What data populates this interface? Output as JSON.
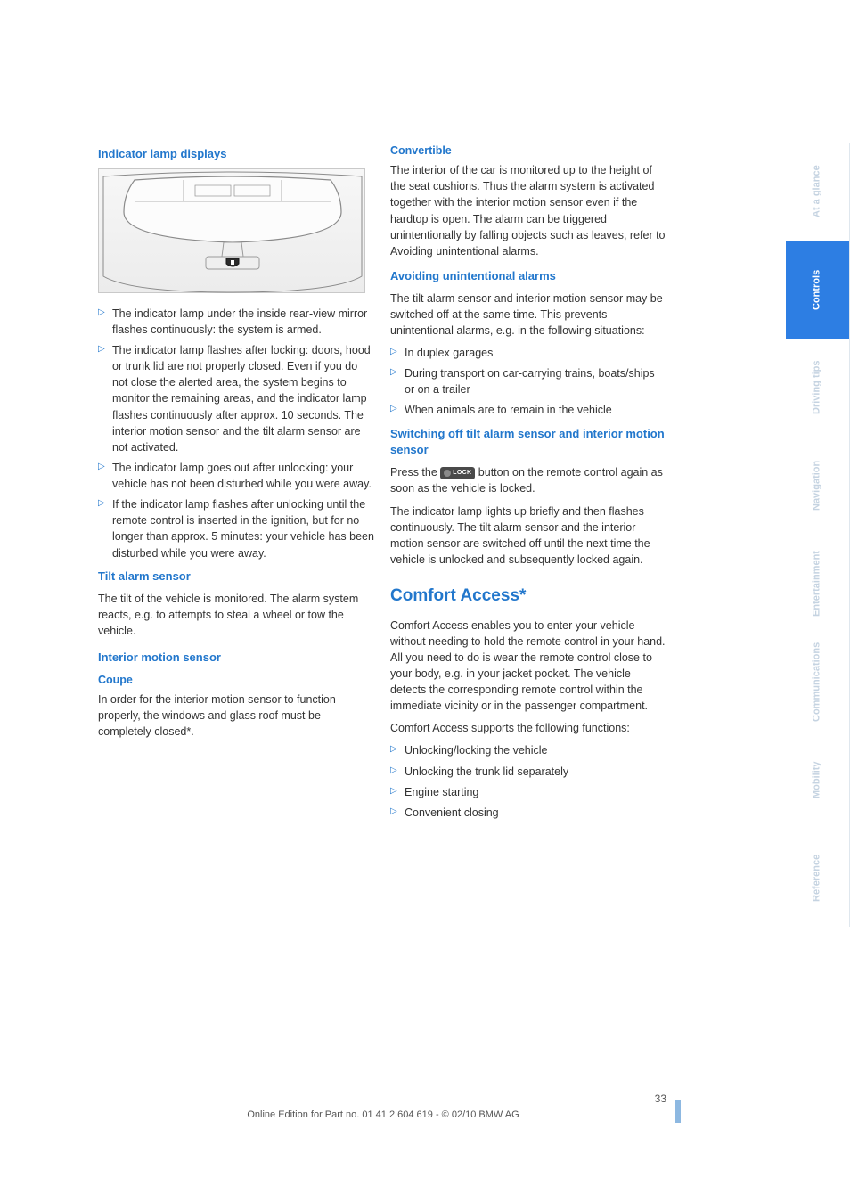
{
  "page": {
    "number": "33",
    "footer": "Online Edition for Part no. 01 41 2 604 619 - © 02/10 BMW AG"
  },
  "tabs": {
    "accent": "#2d7ee3",
    "items": [
      {
        "label": "At a glance",
        "active": false
      },
      {
        "label": "Controls",
        "active": true
      },
      {
        "label": "Driving tips",
        "active": false
      },
      {
        "label": "Navigation",
        "active": false
      },
      {
        "label": "Entertainment",
        "active": false
      },
      {
        "label": "Communications",
        "active": false
      },
      {
        "label": "Mobility",
        "active": false
      },
      {
        "label": "Reference",
        "active": false
      }
    ]
  },
  "left": {
    "h1": "Indicator lamp displays",
    "illus": {
      "outer_stroke": "#8a8a8a",
      "shield_fill": "#2b2b2b",
      "shield_stroke": "#1a1a1a",
      "line_stroke": "#9b9b9b"
    },
    "bullets": [
      "The indicator lamp under the inside rear-view mirror flashes continuously: the system is armed.",
      "The indicator lamp flashes after locking: doors, hood or trunk lid are not properly closed. Even if you do not close the alerted area, the system begins to monitor the remaining areas, and the indicator lamp flashes continuously after approx. 10 seconds. The interior motion sensor and the tilt alarm sensor are not activated.",
      "The indicator lamp goes out after unlocking: your vehicle has not been disturbed while you were away.",
      "If the indicator lamp flashes after unlocking until the remote control is inserted in the ignition, but for no longer than approx. 5 minutes: your vehicle has been disturbed while you were away."
    ],
    "h2": "Tilt alarm sensor",
    "p_tilt": "The tilt of the vehicle is monitored. The alarm system reacts, e.g. to attempts to steal a wheel or tow the vehicle.",
    "h3": "Interior motion sensor",
    "h3a": "Coupe",
    "p_coupe": "In order for the interior motion sensor to function properly, the windows and glass roof must be completely closed*."
  },
  "right": {
    "h1": "Convertible",
    "p_conv": "The interior of the car is monitored up to the height of the seat cushions. Thus the alarm system is activated together with the interior motion sensor even if the hardtop is open. The alarm can be triggered unintentionally by falling objects such as leaves, refer to Avoiding unintentional alarms.",
    "h2": "Avoiding unintentional alarms",
    "p_av1": "The tilt alarm sensor and interior motion sensor may be switched off at the same time. This prevents unintentional alarms, e.g. in the following situations:",
    "av_bullets": [
      "In duplex garages",
      "During transport on car-carrying trains, boats/ships or on a trailer",
      "When animals are to remain in the vehicle"
    ],
    "h3": "Switching off tilt alarm sensor and interior motion sensor",
    "p_sw1a": "Press the ",
    "lock_label": "LOCK",
    "p_sw1b": " button on the remote control again as soon as the vehicle is locked.",
    "p_sw2": "The indicator lamp lights up briefly and then flashes continuously. The tilt alarm sensor and the interior motion sensor are switched off until the next time the vehicle is unlocked and subsequently locked again.",
    "h_big": "Comfort Access*",
    "p_ca1": "Comfort Access enables you to enter your vehicle without needing to hold the remote control in your hand. All you need to do is wear the remote control close to your body, e.g. in your jacket pocket. The vehicle detects the corresponding remote control within the immediate vicinity or in the passenger compartment.",
    "p_ca2": "Comfort Access supports the following functions:",
    "ca_bullets": [
      "Unlocking/locking the vehicle",
      "Unlocking the trunk lid separately",
      "Engine starting",
      "Convenient closing"
    ]
  }
}
